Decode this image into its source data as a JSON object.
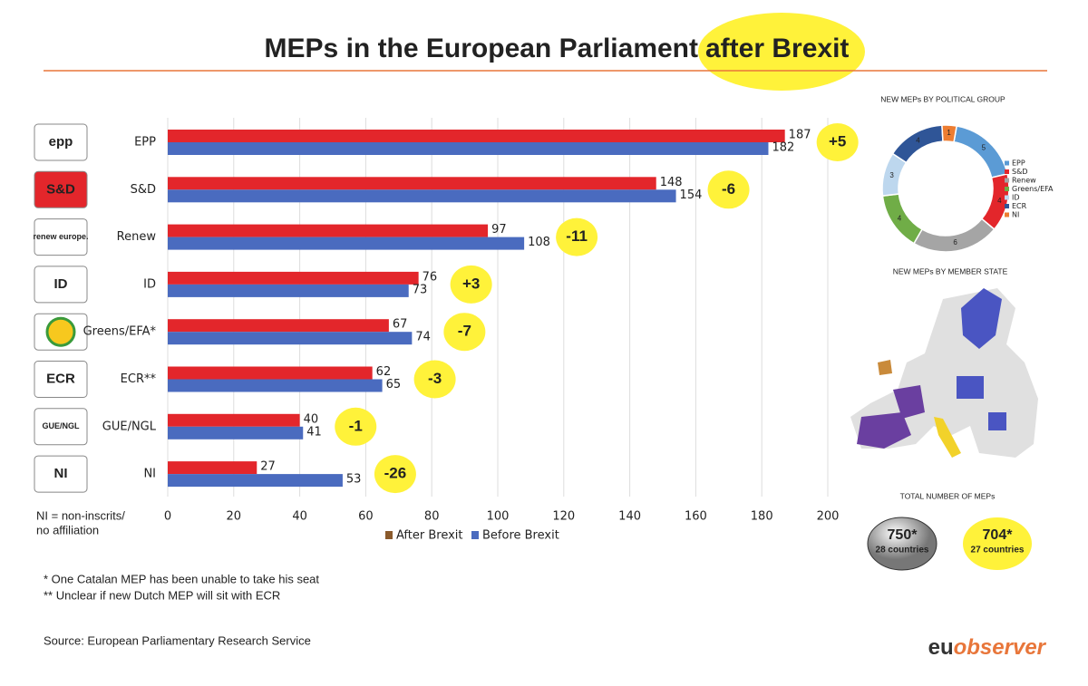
{
  "header": {
    "title_start": "MEPs in the European Parliament",
    "title_highlight": "after Brexit"
  },
  "chart_data": [
    {
      "type": "bar",
      "orientation": "horizontal",
      "categories": [
        "EPP",
        "S&D",
        "Renew",
        "ID",
        "Greens/EFA*",
        "ECR**",
        "GUE/NGL",
        "NI"
      ],
      "series": [
        {
          "name": "After Brexit",
          "color": "#e3262b",
          "legend_color": "#8a5a2c",
          "values": [
            187,
            148,
            97,
            76,
            67,
            62,
            40,
            27
          ]
        },
        {
          "name": "Before Brexit",
          "color": "#4a6bbf",
          "values": [
            182,
            154,
            108,
            73,
            74,
            65,
            41,
            53
          ]
        }
      ],
      "changes": [
        "+5",
        "-6",
        "-11",
        "+3",
        "-7",
        "-3",
        "-1",
        "-26"
      ],
      "xlim": [
        0,
        200
      ],
      "xticks": [
        0,
        20,
        40,
        60,
        80,
        100,
        120,
        140,
        160,
        180,
        200
      ],
      "grid": true,
      "legend": "bottom"
    },
    {
      "type": "donut",
      "title": "NEW MEPs BY POLITICAL GROUP",
      "categories": [
        "EPP",
        "S&D",
        "Renew",
        "Greens/EFA",
        "ID",
        "ECR",
        "NI"
      ],
      "values": [
        5,
        4,
        6,
        4,
        3,
        4,
        1
      ],
      "colors": [
        "#5b9bd5",
        "#e3262b",
        "#a5a5a5",
        "#70ad47",
        "#bdd7ee",
        "#2f5597",
        "#ed7d31"
      ],
      "legend": "right"
    }
  ],
  "logos": [
    "epp",
    "S&D",
    "renew europe.",
    "ID",
    null,
    "ECR",
    "GUE/NGL",
    "NI"
  ],
  "ni_note": [
    "NI = non-inscrits/",
    "no affiliation"
  ],
  "map_title": "NEW MEPs BY MEMBER STATE",
  "totals": {
    "title": "TOTAL NUMBER OF MEPs",
    "before": {
      "value": "750*",
      "label": "28 countries"
    },
    "after": {
      "value": "704*",
      "label": "27 countries"
    }
  },
  "notes": [
    "*  One Catalan MEP has been unable to take his seat",
    "** Unclear if new Dutch MEP will sit with ECR"
  ],
  "source": "Source: European Parliamentary Research Service",
  "brand": {
    "eu": "eu",
    "observer": "observer"
  }
}
